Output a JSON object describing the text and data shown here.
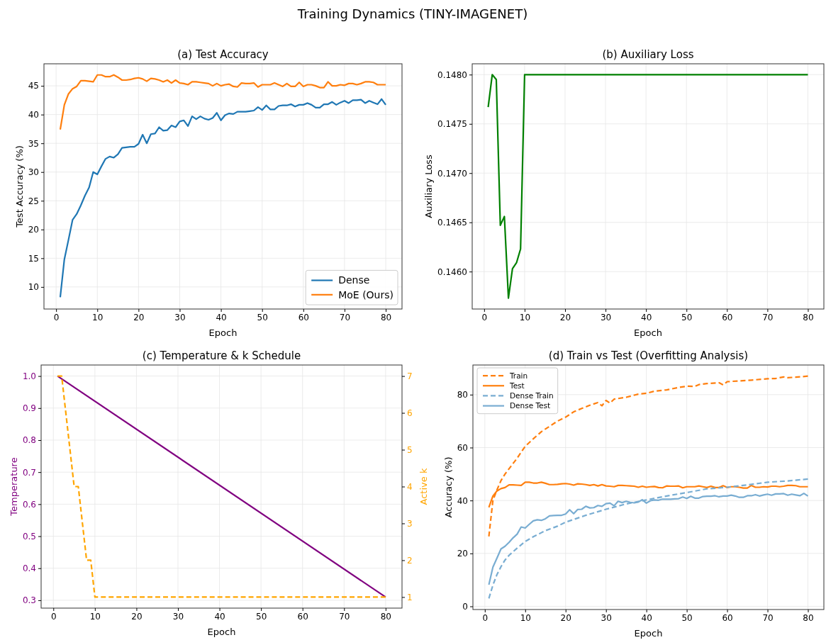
{
  "chart_data": [
    {
      "type": "line",
      "title": "(a) Test Accuracy",
      "xlabel": "Epoch",
      "ylabel": "Test Accuracy (%)",
      "annotations": [
        "Training Dynamics (TINY-IMAGENET)"
      ],
      "xlim": [
        -2.95,
        83.95
      ],
      "ylim": [
        6.16,
        48.84
      ],
      "xticks": [
        0,
        10,
        20,
        30,
        40,
        50,
        60,
        70,
        80
      ],
      "yticks": [
        10,
        15,
        20,
        25,
        30,
        35,
        40,
        45
      ],
      "grid": true,
      "legend": "bottom right",
      "x": [
        1,
        2,
        3,
        4,
        5,
        6,
        7,
        8,
        9,
        10,
        11,
        12,
        13,
        14,
        15,
        16,
        17,
        18,
        19,
        20,
        21,
        22,
        23,
        24,
        25,
        26,
        27,
        28,
        29,
        30,
        31,
        32,
        33,
        34,
        35,
        36,
        37,
        38,
        39,
        40,
        41,
        42,
        43,
        44,
        45,
        46,
        47,
        48,
        49,
        50,
        51,
        52,
        53,
        54,
        55,
        56,
        57,
        58,
        59,
        60,
        61,
        62,
        63,
        64,
        65,
        66,
        67,
        68,
        69,
        70,
        71,
        72,
        73,
        74,
        75,
        76,
        77,
        78,
        79,
        80
      ],
      "series": [
        {
          "name": "Dense",
          "color": "#1f77b4",
          "line_style": "solid",
          "values": [
            8.2,
            14.8,
            18.2,
            21.7,
            22.7,
            24.2,
            25.9,
            27.3,
            30.0,
            29.6,
            31.0,
            32.3,
            32.7,
            32.5,
            33.1,
            34.2,
            34.3,
            34.4,
            34.4,
            34.9,
            36.5,
            35.0,
            36.6,
            36.7,
            37.8,
            37.2,
            37.3,
            38.1,
            37.8,
            38.8,
            39.0,
            38.0,
            39.7,
            39.2,
            39.7,
            39.3,
            39.1,
            39.4,
            40.3,
            39.0,
            39.9,
            40.2,
            40.1,
            40.5,
            40.5,
            40.5,
            40.6,
            40.7,
            41.3,
            40.8,
            41.6,
            40.9,
            40.9,
            41.5,
            41.6,
            41.6,
            41.8,
            41.4,
            41.7,
            41.7,
            42.0,
            41.7,
            41.2,
            41.2,
            41.8,
            41.8,
            42.2,
            41.7,
            42.1,
            42.4,
            42.0,
            42.5,
            42.5,
            42.6,
            42.0,
            42.4,
            42.1,
            41.8,
            42.7,
            41.7
          ]
        },
        {
          "name": "MoE (Ours)",
          "color": "#ff7f0e",
          "line_style": "solid",
          "values": [
            37.4,
            41.7,
            43.6,
            44.5,
            44.9,
            45.9,
            45.9,
            45.8,
            45.7,
            46.9,
            46.9,
            46.6,
            46.6,
            46.9,
            46.5,
            46.0,
            46.0,
            46.1,
            46.3,
            46.4,
            46.2,
            45.8,
            46.3,
            46.2,
            46.0,
            45.7,
            46.0,
            45.5,
            46.0,
            45.5,
            45.4,
            45.2,
            45.7,
            45.7,
            45.6,
            45.5,
            45.4,
            45.0,
            45.4,
            45.0,
            45.2,
            45.3,
            44.9,
            44.8,
            45.5,
            45.4,
            45.4,
            45.5,
            44.8,
            45.2,
            45.2,
            45.2,
            45.5,
            45.2,
            44.9,
            45.4,
            44.9,
            44.9,
            45.6,
            44.9,
            45.2,
            45.2,
            45.0,
            44.7,
            44.7,
            45.7,
            45.0,
            45.0,
            45.2,
            45.1,
            45.4,
            45.4,
            45.2,
            45.4,
            45.7,
            45.7,
            45.6,
            45.2,
            45.2,
            45.2
          ]
        }
      ]
    },
    {
      "type": "line",
      "title": "(b) Auxiliary Loss",
      "xlabel": "Epoch",
      "ylabel": "Auxiliary Loss",
      "xlim": [
        -2.95,
        83.95
      ],
      "ylim": [
        0.14562,
        0.14811
      ],
      "xticks": [
        0,
        10,
        20,
        30,
        40,
        50,
        60,
        70,
        80
      ],
      "yticks": [
        {
          "value": 0.146,
          "label": "0.1460"
        },
        {
          "value": 0.1465,
          "label": "0.1465"
        },
        {
          "value": 0.147,
          "label": "0.1470"
        },
        {
          "value": 0.1475,
          "label": "0.1475"
        },
        {
          "value": 0.148,
          "label": "0.1480"
        }
      ],
      "grid": true,
      "series": [
        {
          "color": "#008000",
          "line_style": "solid",
          "x": [
            1,
            2,
            3,
            4,
            5,
            6,
            7,
            8,
            9,
            10,
            80
          ],
          "values": [
            0.14767,
            0.148,
            0.14795,
            0.14647,
            0.14656,
            0.14573,
            0.14603,
            0.14609,
            0.14623,
            0.148,
            0.148
          ]
        }
      ]
    },
    {
      "type": "line",
      "title": "(c) Temperature & k Schedule",
      "xlabel": "Epoch",
      "ylabel": "Temperature",
      "y2label": "Active k",
      "xlim": [
        -2.95,
        83.95
      ],
      "ylim": [
        0.2755,
        1.0345
      ],
      "y2lim": [
        0.7,
        7.3
      ],
      "xticks": [
        0,
        10,
        20,
        30,
        40,
        50,
        60,
        70,
        80
      ],
      "yticks": [
        {
          "value": 0.3,
          "label": "0.3"
        },
        {
          "value": 0.4,
          "label": "0.4"
        },
        {
          "value": 0.5,
          "label": "0.5"
        },
        {
          "value": 0.6,
          "label": "0.6"
        },
        {
          "value": 0.7,
          "label": "0.7"
        },
        {
          "value": 0.8,
          "label": "0.8"
        },
        {
          "value": 0.9,
          "label": "0.9"
        },
        {
          "value": 1,
          "label": "1.0"
        }
      ],
      "y2ticks": [
        1,
        2,
        3,
        4,
        5,
        6,
        7
      ],
      "grid": true,
      "series": [
        {
          "color": "#800080",
          "line_style": "solid",
          "x": [
            1,
            80
          ],
          "values": [
            1.0,
            0.31
          ]
        },
        {
          "color": "#ffa500",
          "line_style": "dashed",
          "axis": "y2",
          "x": [
            1,
            2,
            5,
            6,
            8,
            9,
            10,
            80
          ],
          "values": [
            7,
            7,
            4,
            4,
            2,
            2,
            1,
            1
          ]
        }
      ]
    },
    {
      "type": "line",
      "title": "(d) Train vs Test (Overfitting Analysis)",
      "xlabel": "Epoch",
      "ylabel": "Accuracy (%)",
      "xlim": [
        -2.95,
        83.95
      ],
      "ylim": [
        -1.2,
        91.2
      ],
      "xticks": [
        0,
        10,
        20,
        30,
        40,
        50,
        60,
        70,
        80
      ],
      "yticks": [
        0,
        20,
        40,
        60,
        80
      ],
      "grid": true,
      "legend": "top left",
      "series": [
        {
          "name": "Train",
          "color": "#ff7f0e",
          "line_style": "dashed",
          "x": [
            1,
            2,
            3,
            4,
            5,
            6,
            8,
            10,
            12,
            14,
            16,
            18,
            20,
            22,
            24,
            26,
            28,
            29,
            30,
            31,
            32,
            35,
            38,
            40,
            42,
            45,
            48,
            50,
            52,
            53,
            55,
            58,
            59,
            60,
            63,
            66,
            70,
            72,
            74,
            75,
            77,
            80
          ],
          "values": [
            26.4,
            40,
            44,
            47.5,
            50,
            52,
            56,
            60.5,
            63.3,
            66,
            68,
            70,
            71.5,
            73.5,
            74.8,
            76,
            77,
            75.8,
            77.8,
            76.8,
            78.3,
            79,
            80.2,
            80.5,
            81.3,
            81.8,
            82.7,
            83.2,
            83.1,
            83.8,
            84.2,
            84.5,
            83.7,
            84.9,
            85.2,
            85.5,
            86,
            86.1,
            86.7,
            86.4,
            86.6,
            87
          ]
        },
        {
          "name": "Test",
          "color": "#ff7f0e",
          "line_style": "solid",
          "x": [
            1,
            2,
            3,
            4,
            5,
            6,
            7,
            8,
            9,
            10,
            11,
            12,
            13,
            14,
            15,
            16,
            17,
            18,
            19,
            20,
            21,
            22,
            23,
            24,
            25,
            26,
            27,
            28,
            29,
            30,
            31,
            32,
            33,
            34,
            35,
            36,
            37,
            38,
            39,
            40,
            41,
            42,
            43,
            44,
            45,
            46,
            47,
            48,
            49,
            50,
            51,
            52,
            53,
            54,
            55,
            56,
            57,
            58,
            59,
            60,
            61,
            62,
            63,
            64,
            65,
            66,
            67,
            68,
            69,
            70,
            71,
            72,
            73,
            74,
            75,
            76,
            77,
            78,
            79,
            80
          ],
          "values": [
            37.4,
            41.7,
            43.6,
            44.5,
            44.9,
            45.9,
            45.9,
            45.8,
            45.7,
            46.9,
            46.9,
            46.6,
            46.6,
            46.9,
            46.5,
            46.0,
            46.0,
            46.1,
            46.3,
            46.4,
            46.2,
            45.8,
            46.3,
            46.2,
            46.0,
            45.7,
            46.0,
            45.5,
            46.0,
            45.5,
            45.4,
            45.2,
            45.7,
            45.7,
            45.6,
            45.5,
            45.4,
            45.0,
            45.4,
            45.0,
            45.2,
            45.3,
            44.9,
            44.8,
            45.5,
            45.4,
            45.4,
            45.5,
            44.8,
            45.2,
            45.2,
            45.2,
            45.5,
            45.2,
            44.9,
            45.4,
            44.9,
            44.9,
            45.6,
            44.9,
            45.2,
            45.2,
            45.0,
            44.7,
            44.7,
            45.7,
            45.0,
            45.0,
            45.2,
            45.1,
            45.4,
            45.4,
            45.2,
            45.4,
            45.7,
            45.7,
            45.6,
            45.2,
            45.2,
            45.2
          ]
        },
        {
          "name": "Dense Train",
          "color": "#79add2",
          "line_style": "dashed",
          "x": [
            1,
            2,
            3,
            4,
            5,
            6,
            8,
            10,
            12,
            15,
            18,
            20,
            25,
            30,
            35,
            40,
            45,
            50,
            55,
            60,
            65,
            70,
            75,
            80
          ],
          "values": [
            3,
            8,
            12,
            15,
            17.5,
            19.3,
            22,
            24.5,
            26.3,
            28.6,
            30.3,
            31.8,
            34.4,
            36.7,
            38.7,
            40.2,
            41.7,
            43,
            44.4,
            45,
            45.9,
            46.9,
            47.4,
            48.1
          ]
        },
        {
          "name": "Dense Test",
          "color": "#79add2",
          "line_style": "solid",
          "x": [
            1,
            2,
            3,
            4,
            5,
            6,
            7,
            8,
            9,
            10,
            11,
            12,
            13,
            14,
            15,
            16,
            17,
            18,
            19,
            20,
            21,
            22,
            23,
            24,
            25,
            26,
            27,
            28,
            29,
            30,
            31,
            32,
            33,
            34,
            35,
            36,
            37,
            38,
            39,
            40,
            41,
            42,
            43,
            44,
            45,
            46,
            47,
            48,
            49,
            50,
            51,
            52,
            53,
            54,
            55,
            56,
            57,
            58,
            59,
            60,
            61,
            62,
            63,
            64,
            65,
            66,
            67,
            68,
            69,
            70,
            71,
            72,
            73,
            74,
            75,
            76,
            77,
            78,
            79,
            80
          ],
          "values": [
            8.2,
            14.8,
            18.2,
            21.7,
            22.7,
            24.2,
            25.9,
            27.3,
            30.0,
            29.6,
            31.0,
            32.3,
            32.7,
            32.5,
            33.1,
            34.2,
            34.3,
            34.4,
            34.4,
            34.9,
            36.5,
            35.0,
            36.6,
            36.7,
            37.8,
            37.2,
            37.3,
            38.1,
            37.8,
            38.8,
            39.0,
            38.0,
            39.7,
            39.2,
            39.7,
            39.3,
            39.1,
            39.4,
            40.3,
            39.0,
            39.9,
            40.2,
            40.1,
            40.5,
            40.5,
            40.5,
            40.6,
            40.7,
            41.3,
            40.8,
            41.6,
            40.9,
            40.9,
            41.5,
            41.6,
            41.6,
            41.8,
            41.4,
            41.7,
            41.7,
            42.0,
            41.7,
            41.2,
            41.2,
            41.8,
            41.8,
            42.2,
            41.7,
            42.1,
            42.4,
            42.0,
            42.5,
            42.5,
            42.6,
            42.0,
            42.4,
            42.1,
            41.8,
            42.7,
            41.7
          ]
        }
      ]
    }
  ]
}
